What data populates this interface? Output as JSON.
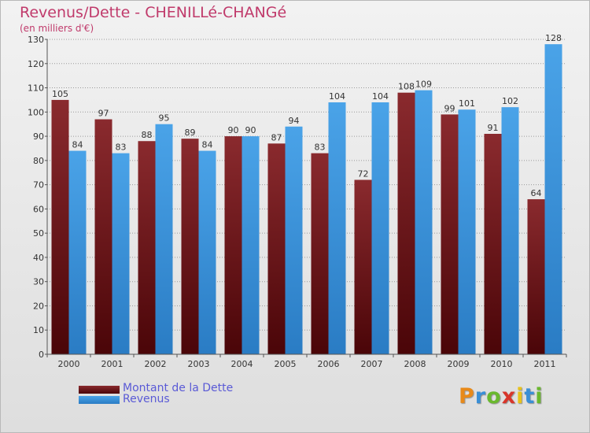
{
  "chart_data": {
    "type": "bar",
    "title": "Revenus/Dette - CHENILLé-CHANGé",
    "subtitle": "(en milliers d'€)",
    "categories": [
      "2000",
      "2001",
      "2002",
      "2003",
      "2004",
      "2005",
      "2006",
      "2007",
      "2008",
      "2009",
      "2010",
      "2011"
    ],
    "series": [
      {
        "name": "Montant de la Dette",
        "color": "#7a1a1f",
        "values": [
          105,
          97,
          88,
          89,
          90,
          87,
          83,
          72,
          108,
          99,
          91,
          64
        ]
      },
      {
        "name": "Revenus",
        "color": "#3d95d9",
        "values": [
          84,
          83,
          95,
          84,
          90,
          94,
          104,
          104,
          109,
          101,
          102,
          128
        ]
      }
    ],
    "ylim": [
      0,
      130
    ],
    "yticks": [
      0,
      10,
      20,
      30,
      40,
      50,
      60,
      70,
      80,
      90,
      100,
      110,
      120,
      130
    ],
    "grid": true,
    "legend_position": "bottom-left"
  },
  "logo": {
    "letters": [
      "P",
      "r",
      "o",
      "x",
      "i",
      "t",
      "i"
    ],
    "colors": [
      "#e88a1a",
      "#3a8fd6",
      "#6ab82e",
      "#d8352a",
      "#e8c21a",
      "#3a8fd6",
      "#6ab82e"
    ]
  }
}
